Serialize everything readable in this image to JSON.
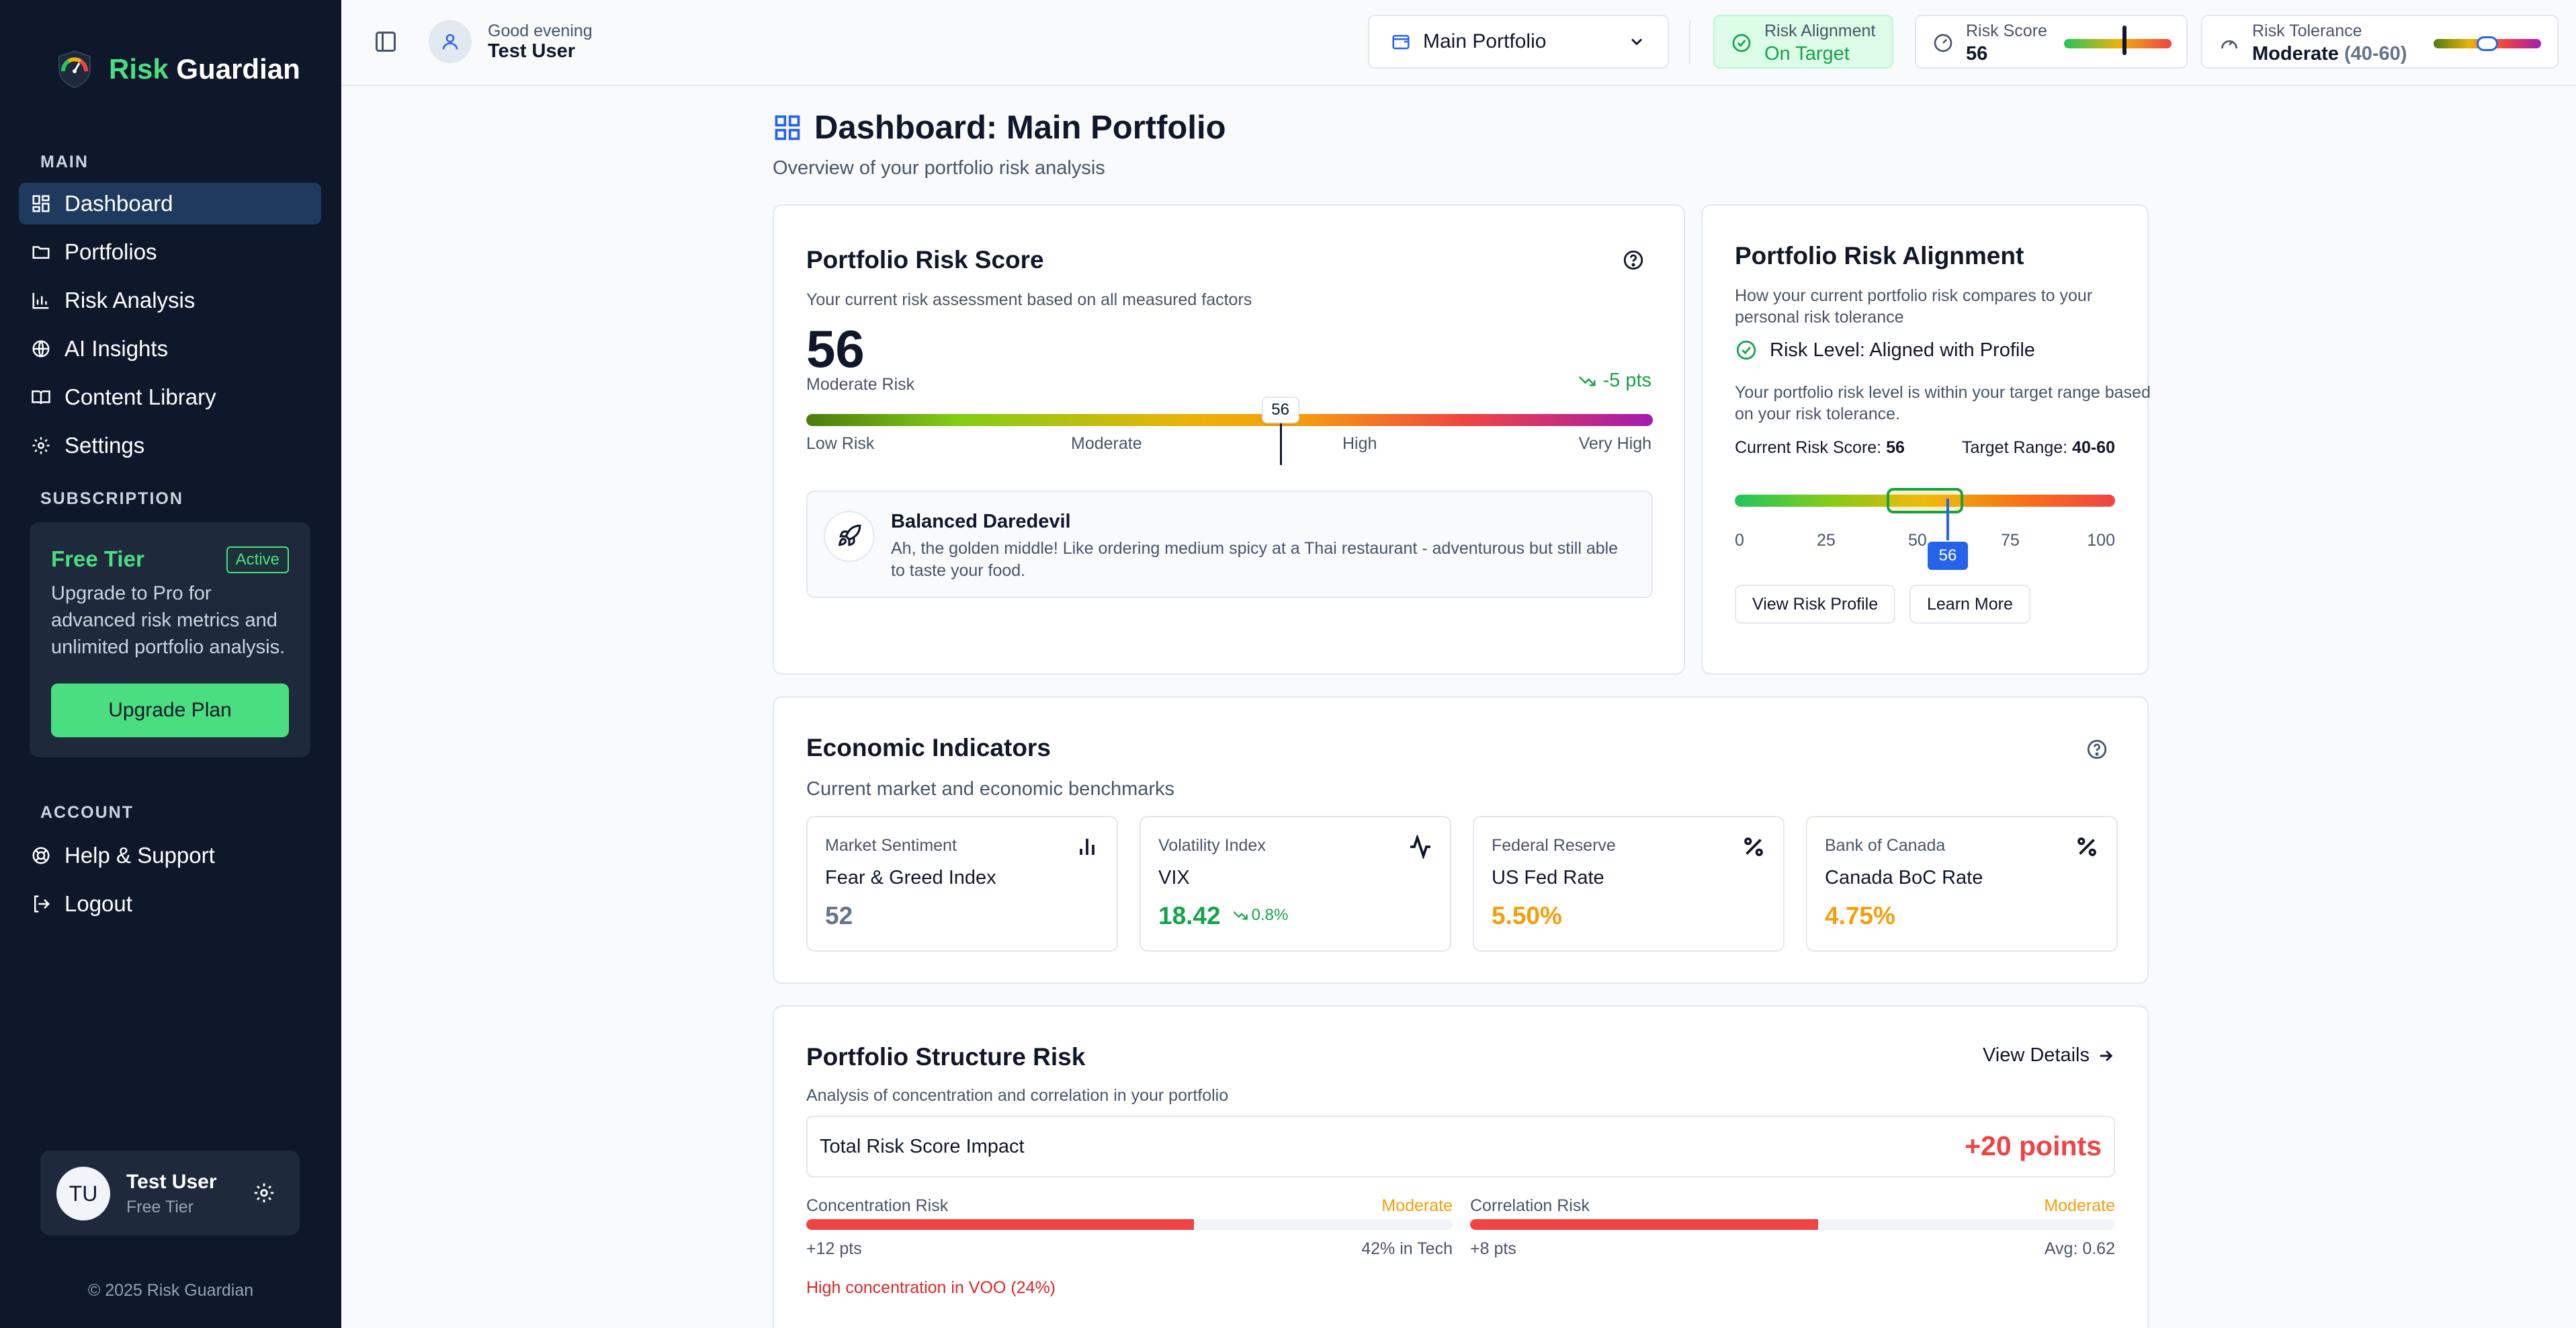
{
  "brand": {
    "name_part1": "Risk",
    "name_part2": "Guardian"
  },
  "sidebar": {
    "main_label": "MAIN",
    "main_items": [
      {
        "label": "Dashboard",
        "icon": "dashboard-icon",
        "active": true
      },
      {
        "label": "Portfolios",
        "icon": "folder-icon"
      },
      {
        "label": "Risk Analysis",
        "icon": "bar-chart-icon"
      },
      {
        "label": "AI Insights",
        "icon": "globe-icon"
      },
      {
        "label": "Content Library",
        "icon": "book-icon"
      },
      {
        "label": "Settings",
        "icon": "gear-icon"
      }
    ],
    "subscription_label": "SUBSCRIPTION",
    "subscription": {
      "tier": "Free Tier",
      "badge": "Active",
      "description": "Upgrade to Pro for advanced risk metrics and unlimited portfolio analysis.",
      "button": "Upgrade Plan"
    },
    "account_label": "ACCOUNT",
    "account_items": [
      {
        "label": "Help & Support",
        "icon": "lifebuoy-icon"
      },
      {
        "label": "Logout",
        "icon": "logout-icon"
      }
    ],
    "user": {
      "initials": "TU",
      "name": "Test User",
      "tier": "Free Tier"
    },
    "copyright": "© 2025 Risk Guardian"
  },
  "topbar": {
    "greeting": "Good evening",
    "user_name": "Test User",
    "portfolio_select": "Main Portfolio",
    "alignment": {
      "label": "Risk Alignment",
      "value": "On Target"
    },
    "risk_score": {
      "label": "Risk Score",
      "value": "56",
      "fraction": 0.56
    },
    "risk_tolerance": {
      "label": "Risk Tolerance",
      "value": "Moderate",
      "range": "(40-60)",
      "range_start": 0.4,
      "range_end": 0.6
    }
  },
  "page": {
    "title": "Dashboard: Main Portfolio",
    "subtitle": "Overview of your portfolio risk analysis"
  },
  "risk_score_card": {
    "title": "Portfolio Risk Score",
    "subtitle": "Your current risk assessment based on all measured factors",
    "score": "56",
    "score_fraction": 0.56,
    "level": "Moderate Risk",
    "delta": "-5 pts",
    "scale": [
      "Low Risk",
      "Moderate",
      "High",
      "Very High"
    ],
    "persona_name": "Balanced Daredevil",
    "persona_desc": "Ah, the golden middle! Like ordering medium spicy at a Thai restaurant - adventurous but still able to taste your food."
  },
  "alignment_card": {
    "title": "Portfolio Risk Alignment",
    "subtitle": "How your current portfolio risk compares to your personal risk tolerance",
    "status": "Risk Level: Aligned with Profile",
    "description": "Your portfolio risk level is within your target range based on your risk tolerance.",
    "current_label": "Current Risk Score:",
    "current_value": "56",
    "target_label": "Target Range:",
    "target_value": "40-60",
    "ticks": [
      "0",
      "25",
      "50",
      "75",
      "100"
    ],
    "score_fraction": 0.56,
    "target_start": 0.4,
    "target_end": 0.6,
    "marker": "56",
    "btn_profile": "View Risk Profile",
    "btn_learn": "Learn More"
  },
  "economic": {
    "title": "Economic Indicators",
    "subtitle": "Current market and economic benchmarks",
    "indicators": [
      {
        "category": "Market Sentiment",
        "name": "Fear & Greed Index",
        "value": "52",
        "color": "#64748b",
        "icon": "bar-chart-icon"
      },
      {
        "category": "Volatility Index",
        "name": "VIX",
        "value": "18.42",
        "change": "0.8%",
        "color": "#16a34a",
        "icon": "activity-icon"
      },
      {
        "category": "Federal Reserve",
        "name": "US Fed Rate",
        "value": "5.50%",
        "color": "#f59e0b",
        "icon": "percent-icon"
      },
      {
        "category": "Bank of Canada",
        "name": "Canada BoC Rate",
        "value": "4.75%",
        "color": "#f59e0b",
        "icon": "percent-icon"
      }
    ]
  },
  "structure": {
    "title": "Portfolio Structure Risk",
    "subtitle": "Analysis of concentration and correlation in your portfolio",
    "view_details": "View Details",
    "impact_label": "Total Risk Score Impact",
    "impact_value": "+20 points",
    "concentration": {
      "label": "Concentration Risk",
      "level": "Moderate",
      "points": "+12 pts",
      "detail": "42% in Tech",
      "fill": 0.6
    },
    "correlation": {
      "label": "Correlation Risk",
      "level": "Moderate",
      "points": "+8 pts",
      "detail": "Avg: 0.62",
      "fill": 0.54
    },
    "warning": "High concentration in VOO (24%)"
  },
  "colors": {
    "accent_green": "#4ade80",
    "sidebar_bg": "#0f172a",
    "danger": "#ef4444",
    "warning": "#f59e0b"
  }
}
